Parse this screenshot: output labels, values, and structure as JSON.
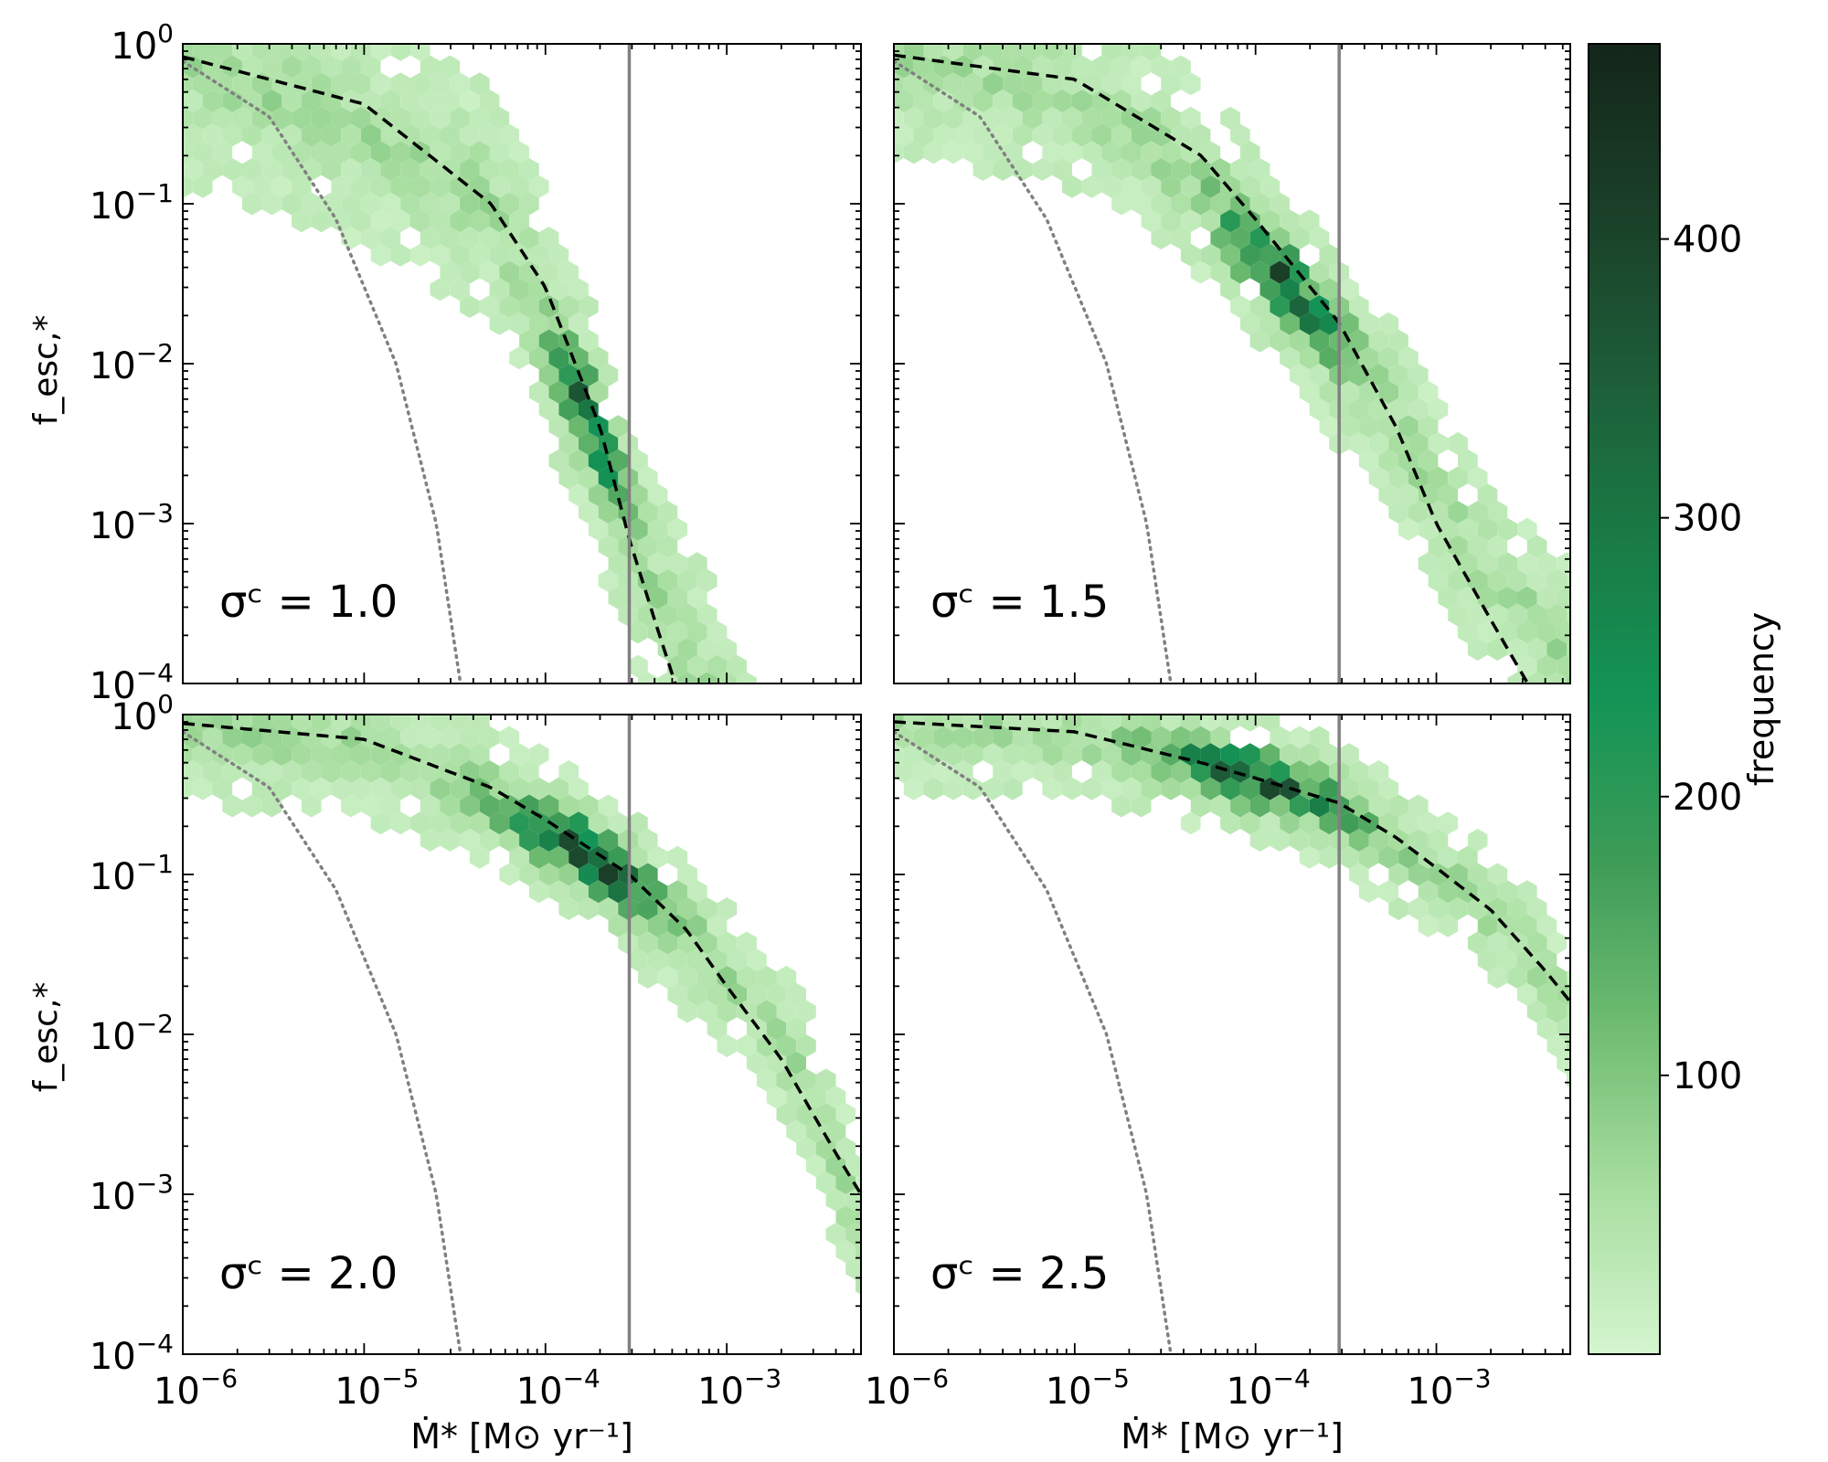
{
  "figure": {
    "colorbar": {
      "label": "frequency",
      "min": 0,
      "max": 470,
      "ticks": [
        100,
        200,
        300,
        400
      ],
      "tick_labels": [
        "100",
        "200",
        "300",
        "400"
      ],
      "colors": [
        "#d4f5cf",
        "#a8dea0",
        "#6fbc72",
        "#3e9c57",
        "#139456",
        "#1a7a45",
        "#1d5c38",
        "#1a3f28",
        "#13261a"
      ]
    },
    "y_label": "f_esc,*",
    "x_label": "Ṁ* [M⊙ yr⁻¹]",
    "y_tick_labels": [
      {
        "base": "10",
        "exp": "0"
      },
      {
        "base": "10",
        "exp": "−1"
      },
      {
        "base": "10",
        "exp": "−2"
      },
      {
        "base": "10",
        "exp": "−3"
      },
      {
        "base": "10",
        "exp": "−4"
      }
    ],
    "x_tick_labels": [
      {
        "base": "10",
        "exp": "−6"
      },
      {
        "base": "10",
        "exp": "−5"
      },
      {
        "base": "10",
        "exp": "−4"
      },
      {
        "base": "10",
        "exp": "−3"
      }
    ]
  },
  "chart_data": [
    {
      "type": "hexbin",
      "panel": "top-left",
      "annotation": "σᶜ = 1.0",
      "sigma_c": 1.0,
      "xscale": "log",
      "yscale": "log",
      "xlim": [
        1e-06,
        0.0055
      ],
      "ylim": [
        0.0001,
        1
      ],
      "vline_x": 0.00029,
      "dashed_curve": [
        [
          1e-06,
          0.83
        ],
        [
          1e-05,
          0.42
        ],
        [
          5e-05,
          0.1
        ],
        [
          0.0001,
          0.03
        ],
        [
          0.0002,
          0.004
        ],
        [
          0.00029,
          0.0008
        ],
        [
          0.0004,
          0.00025
        ],
        [
          0.00052,
          0.0001
        ]
      ],
      "dotted_curve": [
        [
          1e-06,
          0.78
        ],
        [
          3e-06,
          0.35
        ],
        [
          7e-06,
          0.08
        ],
        [
          1.5e-05,
          0.01
        ],
        [
          2.5e-05,
          0.001
        ],
        [
          3.4e-05,
          0.0001
        ]
      ],
      "density_ridge": [
        [
          1e-06,
          0.7
        ],
        [
          1e-05,
          0.3
        ],
        [
          5e-05,
          0.1
        ],
        [
          0.0001,
          0.02
        ],
        [
          0.0002,
          0.003
        ],
        [
          0.0003,
          0.0008
        ],
        [
          0.0005,
          0.0002
        ],
        [
          0.0007,
          0.0001
        ]
      ],
      "ridge_width_decades": 0.55,
      "peak": {
        "x": 0.00023,
        "y": 0.0045,
        "count": 470
      }
    },
    {
      "type": "hexbin",
      "panel": "top-right",
      "annotation": "σᶜ = 1.5",
      "sigma_c": 1.5,
      "xscale": "log",
      "yscale": "log",
      "xlim": [
        1e-06,
        0.0055
      ],
      "ylim": [
        0.0001,
        1
      ],
      "vline_x": 0.00029,
      "dashed_curve": [
        [
          1e-06,
          0.85
        ],
        [
          1e-05,
          0.6
        ],
        [
          5e-05,
          0.2
        ],
        [
          0.0001,
          0.08
        ],
        [
          0.00029,
          0.018
        ],
        [
          0.0006,
          0.004
        ],
        [
          0.001,
          0.001
        ],
        [
          0.002,
          0.00025
        ],
        [
          0.0032,
          0.0001
        ]
      ],
      "dotted_curve": [
        [
          1e-06,
          0.78
        ],
        [
          3e-06,
          0.35
        ],
        [
          7e-06,
          0.08
        ],
        [
          1.5e-05,
          0.01
        ],
        [
          2.5e-05,
          0.001
        ],
        [
          3.4e-05,
          0.0001
        ]
      ],
      "density_ridge": [
        [
          1e-06,
          0.8
        ],
        [
          1e-05,
          0.5
        ],
        [
          5e-05,
          0.15
        ],
        [
          0.00015,
          0.03
        ],
        [
          0.0003,
          0.012
        ],
        [
          0.0006,
          0.004
        ],
        [
          0.0015,
          0.0007
        ],
        [
          0.004,
          0.0002
        ]
      ],
      "ridge_width_decades": 0.45,
      "peak": {
        "x": 0.00012,
        "y": 0.03,
        "count": 460
      }
    },
    {
      "type": "hexbin",
      "panel": "bottom-left",
      "annotation": "σᶜ = 2.0",
      "sigma_c": 2.0,
      "xscale": "log",
      "yscale": "log",
      "xlim": [
        1e-06,
        0.0055
      ],
      "ylim": [
        0.0001,
        1
      ],
      "vline_x": 0.00029,
      "dashed_curve": [
        [
          1e-06,
          0.88
        ],
        [
          1e-05,
          0.7
        ],
        [
          5e-05,
          0.35
        ],
        [
          0.0001,
          0.22
        ],
        [
          0.00029,
          0.1
        ],
        [
          0.0006,
          0.045
        ],
        [
          0.001,
          0.02
        ],
        [
          0.002,
          0.007
        ],
        [
          0.004,
          0.0018
        ],
        [
          0.0055,
          0.001
        ]
      ],
      "dotted_curve": [
        [
          1e-06,
          0.78
        ],
        [
          3e-06,
          0.35
        ],
        [
          7e-06,
          0.08
        ],
        [
          1.5e-05,
          0.01
        ],
        [
          2.5e-05,
          0.001
        ],
        [
          3.4e-05,
          0.0001
        ]
      ],
      "density_ridge": [
        [
          1e-06,
          0.85
        ],
        [
          1e-05,
          0.65
        ],
        [
          5e-05,
          0.3
        ],
        [
          0.00015,
          0.15
        ],
        [
          0.0003,
          0.08
        ],
        [
          0.0006,
          0.04
        ],
        [
          0.0015,
          0.015
        ],
        [
          0.003,
          0.004
        ],
        [
          0.005,
          0.0008
        ]
      ],
      "ridge_width_decades": 0.35,
      "peak": {
        "x": 0.00018,
        "y": 0.13,
        "count": 450
      }
    },
    {
      "type": "hexbin",
      "panel": "bottom-right",
      "annotation": "σᶜ = 2.5",
      "sigma_c": 2.5,
      "xscale": "log",
      "yscale": "log",
      "xlim": [
        1e-06,
        0.0055
      ],
      "ylim": [
        0.0001,
        1
      ],
      "vline_x": 0.00029,
      "dashed_curve": [
        [
          1e-06,
          0.9
        ],
        [
          1e-05,
          0.78
        ],
        [
          5e-05,
          0.5
        ],
        [
          0.0001,
          0.4
        ],
        [
          0.00029,
          0.28
        ],
        [
          0.0006,
          0.17
        ],
        [
          0.001,
          0.11
        ],
        [
          0.002,
          0.06
        ],
        [
          0.004,
          0.025
        ],
        [
          0.0055,
          0.016
        ]
      ],
      "dotted_curve": [
        [
          1e-06,
          0.78
        ],
        [
          3e-06,
          0.35
        ],
        [
          7e-06,
          0.08
        ],
        [
          1.5e-05,
          0.01
        ],
        [
          2.5e-05,
          0.001
        ],
        [
          3.4e-05,
          0.0001
        ]
      ],
      "density_ridge": [
        [
          1e-06,
          0.88
        ],
        [
          1e-05,
          0.75
        ],
        [
          5e-05,
          0.5
        ],
        [
          0.00015,
          0.35
        ],
        [
          0.0003,
          0.25
        ],
        [
          0.0006,
          0.15
        ],
        [
          0.0015,
          0.08
        ],
        [
          0.003,
          0.035
        ],
        [
          0.005,
          0.015
        ]
      ],
      "ridge_width_decades": 0.3,
      "peak": {
        "x": 0.0001,
        "y": 0.38,
        "count": 450
      }
    }
  ]
}
